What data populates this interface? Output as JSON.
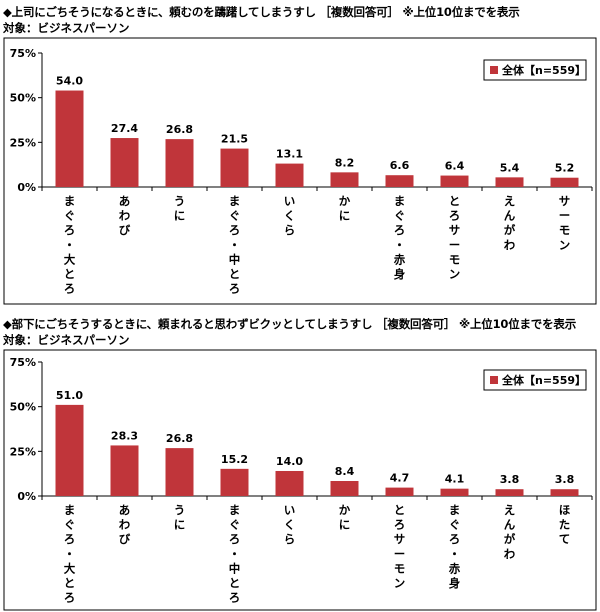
{
  "chart_data": [
    {
      "type": "bar",
      "title": "◆上司にごちそうになるときに、頼むのを躊躇してしまうすし ［複数回答可］ ※上位10位までを表示",
      "subtitle": "対象：ビジネスパーソン",
      "categories": [
        "まぐろ・大とろ",
        "あわび",
        "うに",
        "まぐろ・中とろ",
        "いくら",
        "かに",
        "まぐろ・赤身",
        "とろサーモン",
        "えんがわ",
        "サーモン"
      ],
      "series": [
        {
          "name": "全体【n=559】",
          "values": [
            54.0,
            27.4,
            26.8,
            21.5,
            13.1,
            8.2,
            6.6,
            6.4,
            5.4,
            5.2
          ]
        }
      ],
      "value_labels": [
        "54.0",
        "27.4",
        "26.8",
        "21.5",
        "13.1",
        "8.2",
        "6.6",
        "6.4",
        "5.4",
        "5.2"
      ],
      "yticks": [
        "75%",
        "50%",
        "25%",
        "0%"
      ],
      "ylim": [
        0,
        75
      ],
      "legend": "top-right",
      "grid": false,
      "bar_color": "#c0353a"
    },
    {
      "type": "bar",
      "title": "◆部下にごちそうするときに、頼まれると思わずビクッとしてしまうすし ［複数回答可］ ※上位10位までを表示",
      "subtitle": "対象：ビジネスパーソン",
      "categories": [
        "まぐろ・大とろ",
        "あわび",
        "うに",
        "まぐろ・中とろ",
        "いくら",
        "かに",
        "とろサーモン",
        "まぐろ・赤身",
        "えんがわ",
        "ほたて"
      ],
      "series": [
        {
          "name": "全体【n=559】",
          "values": [
            51.0,
            28.3,
            26.8,
            15.2,
            14.0,
            8.4,
            4.7,
            4.1,
            3.8,
            3.8
          ]
        }
      ],
      "value_labels": [
        "51.0",
        "28.3",
        "26.8",
        "15.2",
        "14.0",
        "8.4",
        "4.7",
        "4.1",
        "3.8",
        "3.8"
      ],
      "yticks": [
        "75%",
        "50%",
        "25%",
        "0%"
      ],
      "ylim": [
        0,
        75
      ],
      "legend": "top-right",
      "grid": false,
      "bar_color": "#c0353a"
    }
  ]
}
